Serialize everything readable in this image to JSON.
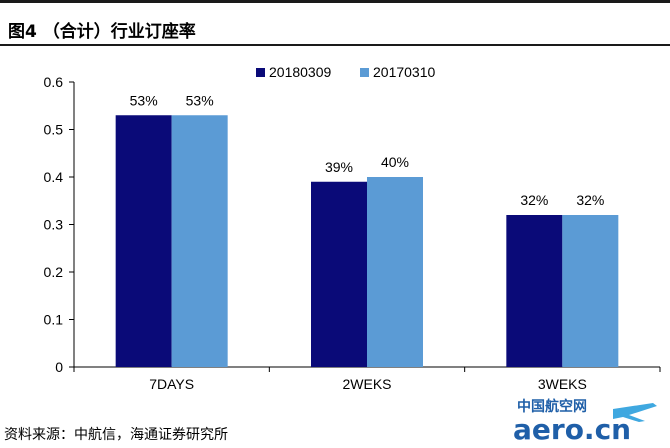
{
  "header": {
    "title": "图4  （合计）行业订座率"
  },
  "footer": {
    "source": "资料来源：中航信，海通证券研究所"
  },
  "watermark": {
    "cn_text": "中国航空网",
    "en_text": "aero.cn"
  },
  "colors": {
    "series_2018": "#0a0a78",
    "series_2017": "#5b9bd5"
  },
  "chart_data": {
    "type": "bar",
    "categories": [
      "7DAYS",
      "2WEKS",
      "3WEKS"
    ],
    "series": [
      {
        "name": "20180309",
        "values": [
          0.53,
          0.39,
          0.32
        ],
        "labels": [
          "53%",
          "39%",
          "32%"
        ]
      },
      {
        "name": "20170310",
        "values": [
          0.53,
          0.4,
          0.32
        ],
        "labels": [
          "53%",
          "40%",
          "32%"
        ]
      }
    ],
    "ylim": [
      0,
      0.6
    ],
    "yticks": [
      0,
      0.1,
      0.2,
      0.3,
      0.4,
      0.5,
      0.6
    ],
    "ytick_labels": [
      "0",
      "0.1",
      "0.2",
      "0.3",
      "0.4",
      "0.5",
      "0.6"
    ],
    "legend_position": "top-right",
    "grid": false
  }
}
